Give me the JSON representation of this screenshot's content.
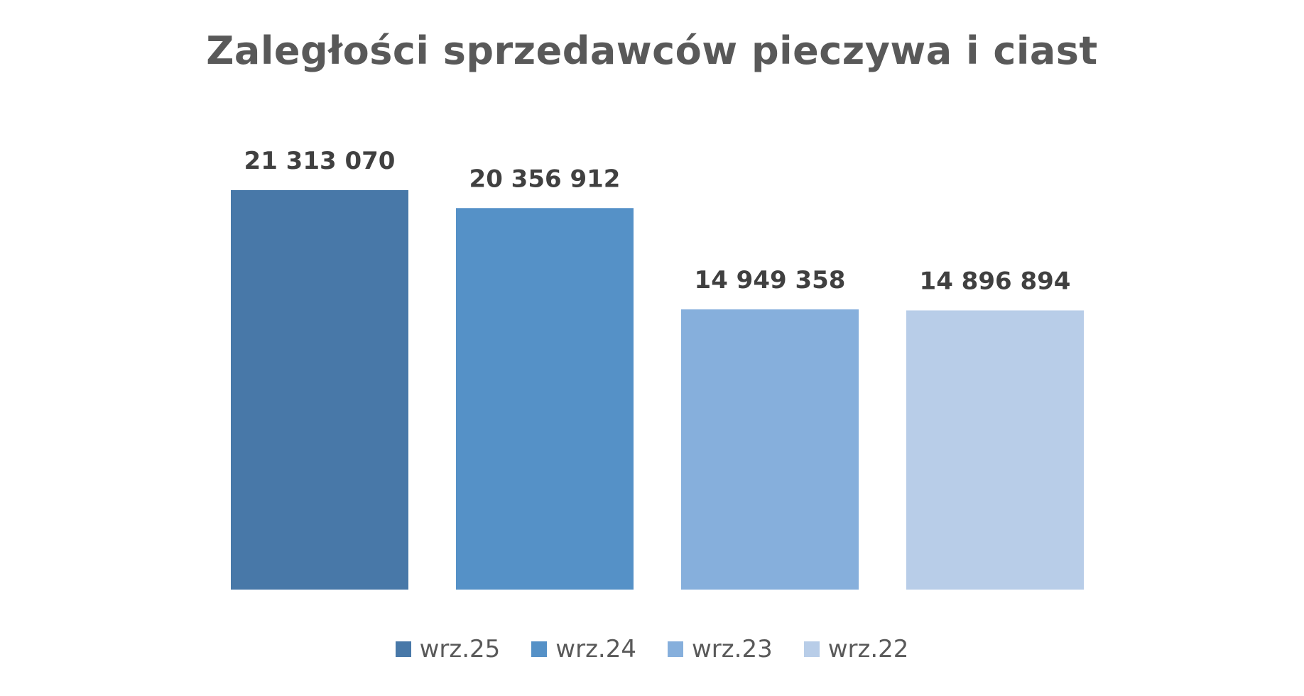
{
  "chart_data": {
    "type": "bar",
    "title": "Zaległości sprzedawców pieczywa i ciast",
    "xlabel": "",
    "ylabel": "",
    "ylim": [
      0,
      24000000
    ],
    "grid": false,
    "legend_position": "bottom",
    "series": [
      {
        "name": "wrz.25",
        "value": 21313070,
        "label": "21 313 070",
        "color": "#4878a8"
      },
      {
        "name": "wrz.24",
        "value": 20356912,
        "label": "20 356 912",
        "color": "#5591c7"
      },
      {
        "name": "wrz.23",
        "value": 14949358,
        "label": "14 949 358",
        "color": "#86afdc"
      },
      {
        "name": "wrz.22",
        "value": 14896894,
        "label": "14 896 894",
        "color": "#b8cde8"
      }
    ]
  }
}
